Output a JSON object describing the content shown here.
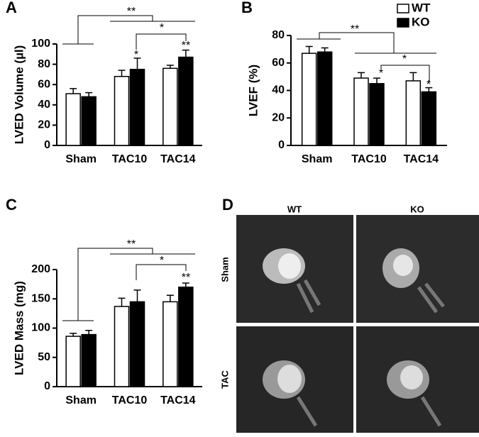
{
  "chart_data": [
    {
      "type": "bar",
      "panel_label": "A",
      "y_label": "LVED Volume (µl)",
      "categories": [
        "Sham",
        "TAC10",
        "TAC14"
      ],
      "series": [
        {
          "name": "WT",
          "color": "#ffffff",
          "values": [
            51,
            68,
            76
          ],
          "errors": [
            5,
            6,
            3
          ]
        },
        {
          "name": "KO",
          "color": "#000000",
          "values": [
            48,
            75,
            87
          ],
          "errors": [
            4,
            11,
            7
          ]
        }
      ],
      "ylim": [
        0,
        100
      ],
      "yticks": [
        0,
        20,
        40,
        60,
        80,
        100
      ],
      "annotations": [
        "**",
        "*",
        "*",
        "**"
      ]
    },
    {
      "type": "bar",
      "panel_label": "B",
      "y_label": "LVEF (%)",
      "categories": [
        "Sham",
        "TAC10",
        "TAC14"
      ],
      "series": [
        {
          "name": "WT",
          "color": "#ffffff",
          "values": [
            67,
            49,
            47
          ],
          "errors": [
            5,
            4,
            6
          ]
        },
        {
          "name": "KO",
          "color": "#000000",
          "values": [
            68,
            45,
            39
          ],
          "errors": [
            3,
            4,
            3
          ]
        }
      ],
      "ylim": [
        0,
        80
      ],
      "yticks": [
        0,
        20,
        40,
        60,
        80
      ],
      "legend": "upper-right",
      "annotations": [
        "**",
        "*",
        "*",
        "*"
      ]
    },
    {
      "type": "bar",
      "panel_label": "C",
      "y_label": "LVED Mass (mg)",
      "categories": [
        "Sham",
        "TAC10",
        "TAC14"
      ],
      "series": [
        {
          "name": "WT",
          "color": "#ffffff",
          "values": [
            86,
            137,
            145
          ],
          "errors": [
            5,
            14,
            11
          ]
        },
        {
          "name": "KO",
          "color": "#000000",
          "values": [
            89,
            145,
            170
          ],
          "errors": [
            7,
            20,
            7
          ]
        }
      ],
      "ylim": [
        0,
        200
      ],
      "yticks": [
        0,
        50,
        100,
        150,
        200
      ],
      "annotations": [
        "**",
        "*",
        "**"
      ]
    }
  ],
  "image_panel": {
    "panel_label": "D",
    "columns": [
      "WT",
      "KO"
    ],
    "rows": [
      "Sham",
      "TAC"
    ]
  }
}
